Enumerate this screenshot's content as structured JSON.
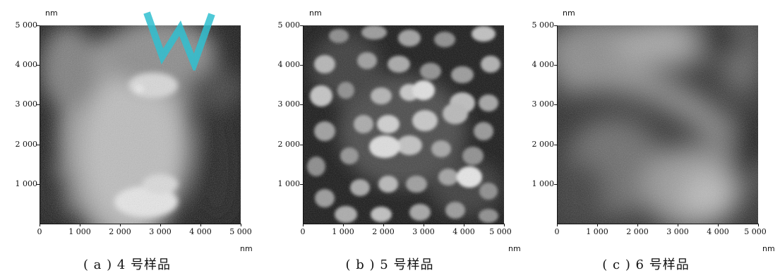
{
  "panels": [
    {
      "id": "a",
      "caption": "( a ) 4 号样品",
      "y_unit": "nm",
      "x_unit": "nm",
      "y_ticks": [
        "5 000",
        "4 000",
        "3 000",
        "2 000",
        "1 000"
      ],
      "x_ticks": [
        "0",
        "1 000",
        "2 000",
        "3 000",
        "4 000",
        "5 000"
      ]
    },
    {
      "id": "b",
      "caption": "( b ) 5 号样品",
      "y_unit": "nm",
      "x_unit": "nm",
      "y_ticks": [
        "5 000",
        "4 000",
        "3 000",
        "2 000",
        "1 000"
      ],
      "x_ticks": [
        "0",
        "1 000",
        "2 000",
        "3 000",
        "4 000",
        "5 000"
      ]
    },
    {
      "id": "c",
      "caption": "( c ) 6 号样品",
      "y_unit": "nm",
      "x_unit": "nm",
      "y_ticks": [
        "5 000",
        "4 000",
        "3 000",
        "2 000",
        "1 000"
      ],
      "x_ticks": [
        "0",
        "1 000",
        "2 000",
        "3 000",
        "4 000",
        "5 000"
      ]
    }
  ],
  "colors": {
    "watermark": "#30c0d0",
    "axis": "#111111"
  }
}
